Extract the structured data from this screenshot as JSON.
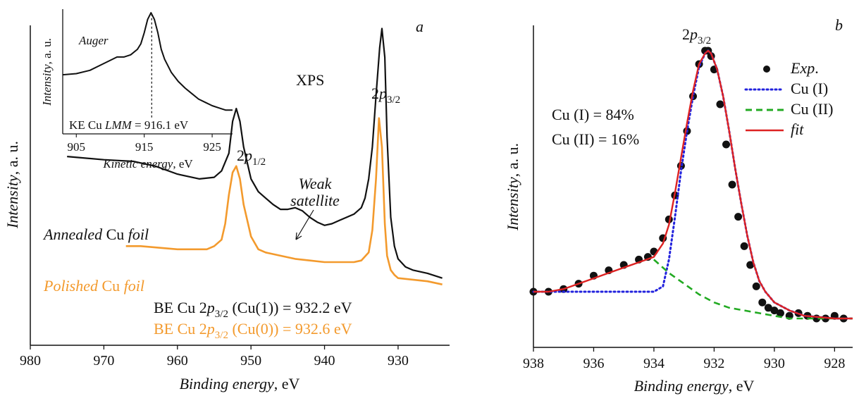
{
  "chart_data": [
    {
      "id": "a",
      "type": "line",
      "panel_label": "a",
      "xlabel_italic": "Binding energy",
      "xlabel_unit": ", eV",
      "ylabel_italic": "Intensity",
      "ylabel_unit": ", a. u.",
      "xlim": [
        980,
        923
      ],
      "ylim": [
        0,
        1
      ],
      "xticks": [
        980,
        970,
        960,
        950,
        940,
        930
      ],
      "annotations": {
        "xps": "XPS",
        "peak_p32_base": "2",
        "peak_p32_sym": "p",
        "peak_p32_sub": "3/2",
        "peak_p12_base": "2",
        "peak_p12_sym": "p",
        "peak_p12_sub": "1/2",
        "weak_line1": "Weak",
        "weak_line2": "satellite",
        "annealed_a": "Annealed",
        "annealed_b": " Cu ",
        "annealed_c": "foil",
        "polished_a": "Polished",
        "polished_b": " Cu ",
        "polished_c": "foil",
        "be1_pre": "BE Cu 2",
        "be1_p": "p",
        "be1_sub": "3/2",
        "be1_post": " (Cu(1)) = 932.2 eV",
        "be2_pre": "BE Cu 2",
        "be2_p": "p",
        "be2_sub": "3/2",
        "be2_post": " (Cu(0)) = 932.6 eV"
      },
      "series": [
        {
          "key": "annealed",
          "color": "#111111",
          "x": [
            975,
            970,
            966,
            963,
            960,
            957,
            955,
            954,
            953,
            952.5,
            952,
            951.5,
            951,
            950,
            949,
            948,
            947,
            946,
            945,
            944,
            943,
            942,
            941,
            940,
            939,
            938,
            937,
            936,
            935,
            934.5,
            934,
            933.5,
            933,
            932.5,
            932.2,
            931.8,
            931.5,
            931,
            930.5,
            930,
            929,
            928,
            926,
            924
          ],
          "y": [
            0.59,
            0.58,
            0.575,
            0.56,
            0.535,
            0.52,
            0.525,
            0.545,
            0.6,
            0.7,
            0.74,
            0.7,
            0.62,
            0.52,
            0.48,
            0.46,
            0.44,
            0.425,
            0.425,
            0.43,
            0.42,
            0.4,
            0.385,
            0.375,
            0.38,
            0.39,
            0.4,
            0.41,
            0.43,
            0.46,
            0.52,
            0.62,
            0.78,
            0.93,
            0.99,
            0.9,
            0.65,
            0.4,
            0.31,
            0.27,
            0.245,
            0.235,
            0.225,
            0.21
          ]
        },
        {
          "key": "polished",
          "color": "#f39a2d",
          "x": [
            967,
            965,
            960,
            958,
            956,
            955,
            954,
            953.5,
            953,
            952.5,
            952,
            951.5,
            951,
            950,
            949,
            948,
            946,
            944,
            942,
            940,
            938,
            936,
            935,
            934,
            933.5,
            933,
            932.6,
            932.2,
            931.8,
            931.5,
            931,
            930.5,
            930,
            928,
            926,
            924
          ],
          "y": [
            0.31,
            0.31,
            0.3,
            0.3,
            0.3,
            0.31,
            0.33,
            0.38,
            0.47,
            0.54,
            0.56,
            0.52,
            0.44,
            0.34,
            0.3,
            0.29,
            0.28,
            0.27,
            0.265,
            0.26,
            0.26,
            0.26,
            0.265,
            0.29,
            0.36,
            0.52,
            0.71,
            0.62,
            0.38,
            0.28,
            0.235,
            0.22,
            0.21,
            0.205,
            0.2,
            0.19
          ]
        }
      ],
      "inset": {
        "type": "line",
        "label": "Auger",
        "ylabel_italic": "Intensity",
        "ylabel_unit": ", a. u.",
        "xlabel_italic": "Kinetic energy",
        "xlabel_unit": ", eV",
        "xlim": [
          903,
          928
        ],
        "ylim": [
          0,
          1
        ],
        "xticks": [
          905,
          915,
          925
        ],
        "note_pre": "KE Cu ",
        "note_it": "LMM",
        "note_post": " = 916.1 eV",
        "marker_x": 916.1,
        "color": "#111111",
        "x": [
          903,
          905,
          907,
          909,
          910,
          911,
          912,
          913,
          914,
          914.5,
          915,
          915.5,
          916,
          916.5,
          917,
          917.5,
          918,
          919,
          920,
          921,
          922,
          923,
          924,
          925,
          926,
          927,
          928
        ],
        "y": [
          0.42,
          0.43,
          0.46,
          0.52,
          0.55,
          0.58,
          0.58,
          0.6,
          0.65,
          0.7,
          0.8,
          0.92,
          0.98,
          0.92,
          0.8,
          0.65,
          0.56,
          0.44,
          0.36,
          0.3,
          0.25,
          0.2,
          0.17,
          0.14,
          0.12,
          0.1,
          0.1
        ]
      }
    },
    {
      "id": "b",
      "type": "line",
      "panel_label": "b",
      "xlabel_italic": "Binding energy",
      "xlabel_unit": ", eV",
      "ylabel_italic": "Intensity",
      "ylabel_unit": ", a. u.",
      "xlim": [
        938,
        927.4
      ],
      "ylim": [
        0,
        1
      ],
      "xticks": [
        938,
        936,
        934,
        932,
        930,
        928
      ],
      "peak_label": {
        "base": "2",
        "sym": "p",
        "sub": "3/2"
      },
      "composition": [
        "Cu (I) = 84%",
        "Cu (II) = 16%"
      ],
      "legend": {
        "position": "top-right",
        "entries": [
          {
            "key": "exp",
            "label": "Exp",
            "suffix": ".",
            "italic": true,
            "color": "#111111",
            "style": "dots"
          },
          {
            "key": "cu1",
            "label": "Cu (I)",
            "suffix": "",
            "italic": false,
            "color": "#2222dd",
            "style": "dotted"
          },
          {
            "key": "cu2",
            "label": "Cu (II)",
            "suffix": "",
            "italic": false,
            "color": "#22aa22",
            "style": "dashed"
          },
          {
            "key": "fit",
            "label": "fit",
            "suffix": "",
            "italic": true,
            "color": "#dd2222",
            "style": "solid"
          }
        ]
      },
      "series": [
        {
          "key": "exp",
          "x": [
            938,
            937.5,
            937,
            936.5,
            936,
            935.5,
            935,
            934.5,
            934.2,
            934,
            933.7,
            933.5,
            933.3,
            933.1,
            932.9,
            932.7,
            932.5,
            932.3,
            932.2,
            932.1,
            932,
            931.8,
            931.6,
            931.4,
            931.2,
            931,
            930.8,
            930.6,
            930.4,
            930.2,
            930,
            929.8,
            929.5,
            929.2,
            928.9,
            928.6,
            928.3,
            928,
            927.7
          ],
          "y": [
            0.1,
            0.1,
            0.11,
            0.13,
            0.16,
            0.18,
            0.2,
            0.22,
            0.23,
            0.25,
            0.3,
            0.37,
            0.46,
            0.57,
            0.7,
            0.83,
            0.95,
            1.0,
            1.0,
            0.98,
            0.93,
            0.8,
            0.65,
            0.5,
            0.38,
            0.27,
            0.2,
            0.12,
            0.06,
            0.04,
            0.03,
            0.02,
            0.01,
            0.02,
            0.01,
            0.0,
            0.0,
            0.01,
            0.0
          ]
        },
        {
          "key": "cu1",
          "x": [
            938,
            937,
            936,
            935,
            934.5,
            934,
            933.7,
            933.5,
            933.3,
            933.1,
            932.9,
            932.7,
            932.5,
            932.3,
            932.2,
            932.1,
            931.9,
            931.7,
            931.5,
            931.3,
            931.1,
            930.9,
            930.7,
            930.5,
            930.3,
            930,
            929.5,
            929,
            928,
            927.4
          ],
          "y": [
            0.1,
            0.1,
            0.1,
            0.1,
            0.1,
            0.1,
            0.12,
            0.22,
            0.38,
            0.55,
            0.7,
            0.83,
            0.94,
            0.99,
            1.0,
            0.99,
            0.93,
            0.83,
            0.7,
            0.56,
            0.43,
            0.31,
            0.21,
            0.14,
            0.1,
            0.06,
            0.03,
            0.01,
            0.0,
            0.0
          ]
        },
        {
          "key": "cu2",
          "x": [
            934,
            933.5,
            933,
            932.5,
            932,
            931.5,
            931,
            930.5,
            930,
            929.5,
            929,
            928,
            927.4
          ],
          "y": [
            0.22,
            0.17,
            0.13,
            0.09,
            0.06,
            0.04,
            0.03,
            0.02,
            0.01,
            0.0,
            0.0,
            0.0,
            0.0
          ]
        },
        {
          "key": "fit",
          "x": [
            938,
            937.5,
            937,
            936.5,
            936,
            935.5,
            935,
            934.5,
            934,
            933.7,
            933.5,
            933.3,
            933.1,
            932.9,
            932.7,
            932.5,
            932.3,
            932.2,
            932.1,
            931.9,
            931.7,
            931.5,
            931.3,
            931.1,
            930.9,
            930.7,
            930.5,
            930.3,
            930,
            929.5,
            929,
            928,
            927.4
          ],
          "y": [
            0.1,
            0.1,
            0.11,
            0.13,
            0.15,
            0.17,
            0.19,
            0.21,
            0.23,
            0.28,
            0.35,
            0.47,
            0.6,
            0.73,
            0.85,
            0.95,
            0.99,
            1.0,
            0.99,
            0.93,
            0.83,
            0.7,
            0.56,
            0.43,
            0.31,
            0.21,
            0.14,
            0.1,
            0.06,
            0.03,
            0.01,
            0.0,
            0.0
          ]
        }
      ]
    }
  ]
}
